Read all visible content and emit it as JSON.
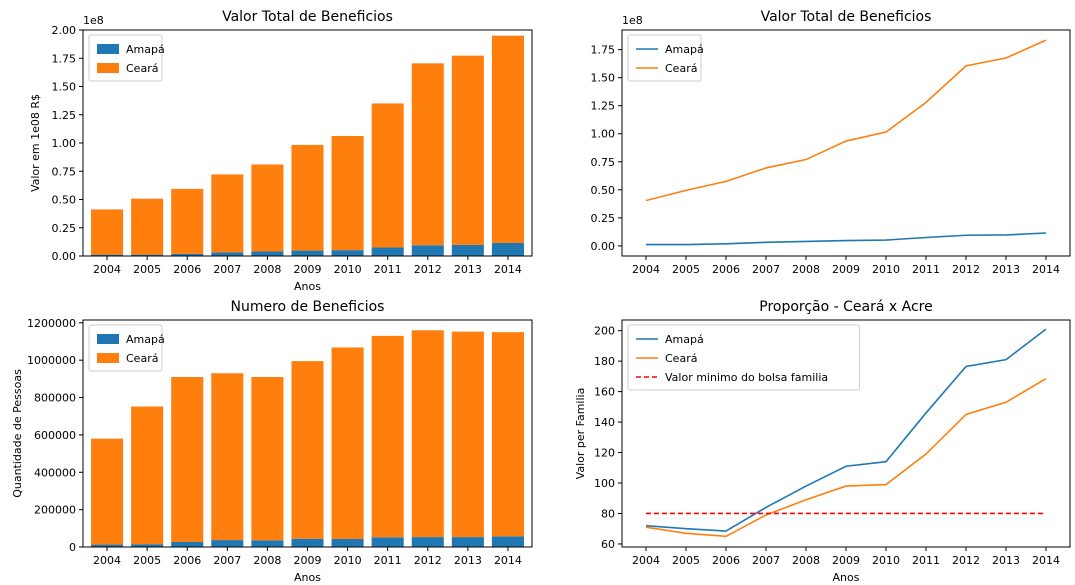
{
  "chart_data": [
    {
      "type": "bar",
      "stacked": true,
      "title": "Valor Total de Beneficios",
      "xlabel": "Anos",
      "ylabel": "Valor em 1e08 R$",
      "offset_label": "1e8",
      "categories": [
        "2004",
        "2005",
        "2006",
        "2007",
        "2008",
        "2009",
        "2010",
        "2011",
        "2012",
        "2013",
        "2014"
      ],
      "series": [
        {
          "name": "Amapá",
          "color": "#1f77b4",
          "values": [
            0.012,
            0.012,
            0.019,
            0.032,
            0.04,
            0.048,
            0.052,
            0.075,
            0.095,
            0.098,
            0.115
          ]
        },
        {
          "name": "Ceará",
          "color": "#ff7f0e",
          "values": [
            0.4,
            0.495,
            0.575,
            0.69,
            0.77,
            0.935,
            1.01,
            1.275,
            1.61,
            1.675,
            1.835
          ]
        }
      ],
      "ylim": [
        0,
        2.0
      ],
      "yticks": [
        "0.00",
        "0.25",
        "0.50",
        "0.75",
        "1.00",
        "1.25",
        "1.50",
        "1.75",
        "2.00"
      ],
      "legend": "top-left"
    },
    {
      "type": "line",
      "title": "Valor Total de Beneficios",
      "xlabel": "",
      "ylabel": "",
      "offset_label": "1e8",
      "categories": [
        "2004",
        "2005",
        "2006",
        "2007",
        "2008",
        "2009",
        "2010",
        "2011",
        "2012",
        "2013",
        "2014"
      ],
      "series": [
        {
          "name": "Amapá",
          "color": "#1f77b4",
          "values": [
            0.012,
            0.012,
            0.019,
            0.032,
            0.04,
            0.048,
            0.052,
            0.075,
            0.095,
            0.098,
            0.115
          ]
        },
        {
          "name": "Ceará",
          "color": "#ff7f0e",
          "values": [
            0.405,
            0.495,
            0.575,
            0.695,
            0.77,
            0.935,
            1.015,
            1.28,
            1.605,
            1.675,
            1.835
          ]
        }
      ],
      "ylim": [
        -0.09,
        1.925
      ],
      "yticks": [
        "0.00",
        "0.25",
        "0.50",
        "0.75",
        "1.00",
        "1.25",
        "1.50",
        "1.75"
      ],
      "legend": "top-left"
    },
    {
      "type": "bar",
      "stacked": true,
      "title": "Numero de Beneficios",
      "xlabel": "Anos",
      "ylabel": "Quantidade de Pessoas",
      "offset_label": "",
      "categories": [
        "2004",
        "2005",
        "2006",
        "2007",
        "2008",
        "2009",
        "2010",
        "2011",
        "2012",
        "2013",
        "2014"
      ],
      "series": [
        {
          "name": "Amapá",
          "color": "#1f77b4",
          "values": [
            13000,
            15000,
            27000,
            37000,
            36000,
            44000,
            43000,
            52000,
            53000,
            53000,
            57000
          ]
        },
        {
          "name": "Ceará",
          "color": "#ff7f0e",
          "values": [
            567000,
            737000,
            883000,
            893000,
            874000,
            951000,
            1025000,
            1078000,
            1107000,
            1100000,
            1093000
          ]
        }
      ],
      "ylim": [
        0,
        1215000
      ],
      "yticks": [
        "0",
        "200000",
        "400000",
        "600000",
        "800000",
        "1000000",
        "1200000"
      ],
      "legend": "top-left"
    },
    {
      "type": "line",
      "title": "Proporção - Ceará x Acre",
      "xlabel": "Anos",
      "ylabel": "Valor per Familia",
      "offset_label": "",
      "categories": [
        "2004",
        "2005",
        "2006",
        "2007",
        "2008",
        "2009",
        "2010",
        "2011",
        "2012",
        "2013",
        "2014"
      ],
      "series": [
        {
          "name": "Amapá",
          "color": "#1f77b4",
          "values": [
            72,
            70,
            68.5,
            84,
            98,
            111,
            114,
            146,
            176.5,
            181,
            201
          ]
        },
        {
          "name": "Ceará",
          "color": "#ff7f0e",
          "values": [
            71,
            67,
            65,
            79,
            89,
            98,
            99,
            119,
            145,
            153,
            168.5
          ]
        },
        {
          "name": "Valor minimo do bolsa familia",
          "color": "#ff0000",
          "dashed": true,
          "values": [
            80,
            80,
            80,
            80,
            80,
            80,
            80,
            80,
            80,
            80,
            80
          ]
        }
      ],
      "ylim": [
        58,
        207
      ],
      "yticks": [
        "60",
        "80",
        "100",
        "120",
        "140",
        "160",
        "180",
        "200"
      ],
      "legend": "top-left"
    }
  ]
}
